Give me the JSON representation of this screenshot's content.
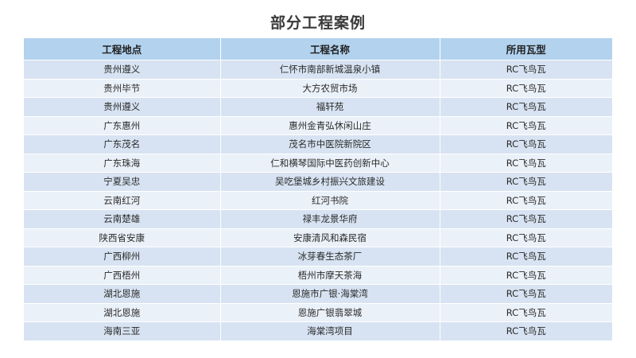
{
  "title": "部分工程案例",
  "table": {
    "headers": [
      "工程地点",
      "工程名称",
      "所用瓦型"
    ],
    "rows": [
      [
        "贵州遵义",
        "仁怀市南部新城温泉小镇",
        "RC飞鸟瓦"
      ],
      [
        "贵州毕节",
        "大方农贸市场",
        "RC飞鸟瓦"
      ],
      [
        "贵州遵义",
        "福轩苑",
        "RC飞鸟瓦"
      ],
      [
        "广东惠州",
        "惠州金青弘休闲山庄",
        "RC飞鸟瓦"
      ],
      [
        "广东茂名",
        "茂名市中医院新院区",
        "RC飞鸟瓦"
      ],
      [
        "广东珠海",
        "仁和横琴国际中医药创新中心",
        "RC飞鸟瓦"
      ],
      [
        "宁夏吴忠",
        "吴吃堡城乡村振兴文旅建设",
        "RC飞鸟瓦"
      ],
      [
        "云南红河",
        "红河书院",
        "RC飞鸟瓦"
      ],
      [
        "云南楚雄",
        "禄丰龙景华府",
        "RC飞鸟瓦"
      ],
      [
        "陕西省安康",
        "安康清风和森民宿",
        "RC飞鸟瓦"
      ],
      [
        "广西柳州",
        "冰芽春生态茶厂",
        "RC飞鸟瓦"
      ],
      [
        "广西梧州",
        "梧州市摩天茶海",
        "RC飞鸟瓦"
      ],
      [
        "湖北恩施",
        "恩施市广银·海棠湾",
        "RC飞鸟瓦"
      ],
      [
        "湖北恩施",
        "恩施广银翡翠城",
        "RC飞鸟瓦"
      ],
      [
        "海南三亚",
        "海棠湾项目",
        "RC飞鸟瓦"
      ]
    ]
  },
  "colors": {
    "header_bg": "#b2d2ee",
    "row_odd": "#d7e3f2",
    "row_even": "#ebf1f9"
  }
}
